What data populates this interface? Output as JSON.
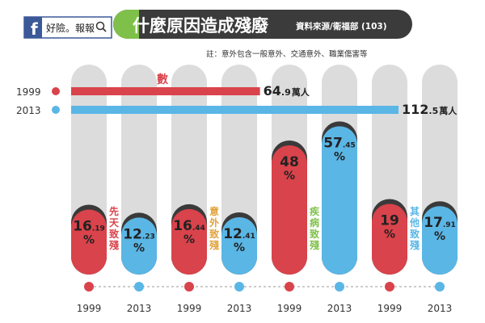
{
  "header": {
    "brand_text": "好險。報報",
    "fb_letter": "f",
    "title": "什麼原因造成殘廢",
    "source": "資料來源/衛福部 (103)",
    "note": "註：意外包含一般意外、交通意外、職業傷害等"
  },
  "colors": {
    "red": "#d9434b",
    "blue": "#5ab6e5",
    "dark": "#3a3a3a",
    "track": "#dcdcdc",
    "header_bg": "#3b3b3b",
    "header_accent": "#7fc04a",
    "fb_blue": "#3b5998"
  },
  "chart_data": {
    "type": "bar",
    "title": "什麼原因造成殘廢",
    "total": {
      "label": "身障人數",
      "unit": "萬人",
      "series": [
        {
          "name": "1999",
          "value_int": "64",
          "value_dec": ".9",
          "value": 64.9
        },
        {
          "name": "2013",
          "value_int": "112",
          "value_dec": ".5",
          "value": 112.5
        }
      ]
    },
    "categories": [
      {
        "label": [
          "先",
          "天",
          "致",
          "殘"
        ],
        "label_color": "#d9434b",
        "label_color_name": "red"
      },
      {
        "label": [
          "意",
          "外",
          "致",
          "殘"
        ],
        "label_color": "#e0a23a",
        "label_color_name": "orange"
      },
      {
        "label": [
          "疾",
          "病",
          "致",
          "殘"
        ],
        "label_color": "#7fc04a",
        "label_color_name": "green"
      },
      {
        "label": [
          "其",
          "他",
          "致",
          "殘"
        ],
        "label_color": "#5ab6e5",
        "label_color_name": "blue"
      }
    ],
    "series": [
      {
        "name": "1999",
        "values": [
          16.19,
          16.44,
          48,
          19
        ],
        "labels": [
          [
            "16",
            ".19"
          ],
          [
            "16",
            ".44"
          ],
          [
            "48",
            ""
          ],
          [
            "19",
            ""
          ]
        ]
      },
      {
        "name": "2013",
        "values": [
          12.23,
          12.41,
          57.45,
          17.91
        ],
        "labels": [
          [
            "12",
            ".23"
          ],
          [
            "12",
            ".41"
          ],
          [
            "57",
            ".45"
          ],
          [
            "17",
            ".91"
          ]
        ]
      }
    ],
    "percent_sign": "%",
    "ylim": [
      0,
      100
    ]
  }
}
